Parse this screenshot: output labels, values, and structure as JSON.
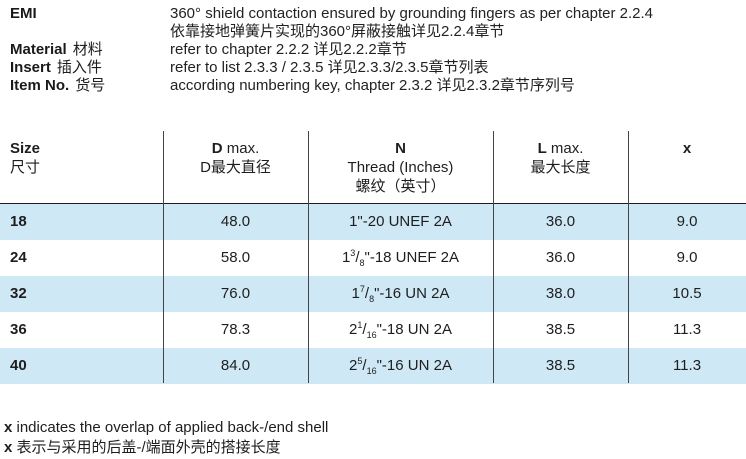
{
  "info": [
    {
      "label": "EMI",
      "label_cn": "",
      "value": "360° shield contaction ensured by grounding fingers as per chapter 2.2.4"
    },
    {
      "label": "",
      "label_cn": "",
      "value": "依靠接地弹簧片实现的360°屏蔽接触详见2.2.4章节"
    },
    {
      "label": "Material",
      "label_cn": "材料",
      "value": "refer to chapter 2.2.2  详见2.2.2章节"
    },
    {
      "label": "Insert",
      "label_cn": "插入件",
      "value": "refer to list 2.3.3 / 2.3.5  详见2.3.3/2.3.5章节列表"
    },
    {
      "label": "Item No.",
      "label_cn": "货号",
      "value": "according numbering key, chapter 2.3.2  详见2.3.2章节序列号"
    }
  ],
  "table": {
    "headers": {
      "size": {
        "bold": "Size",
        "cn": "尺寸"
      },
      "d": {
        "bold": "D",
        "rest": " max.",
        "cn": "D最大直径"
      },
      "n": {
        "bold": "N",
        "line2": "Thread (Inches)",
        "cn": "螺纹（英寸）"
      },
      "l": {
        "bold": "L",
        "rest": " max.",
        "cn": "最大长度"
      },
      "x": {
        "bold": "x"
      }
    },
    "rows": [
      {
        "size": "18",
        "d": "48.0",
        "n_whole": "1",
        "n_num": "",
        "n_den": "",
        "n_rest": "\"-20 UNEF 2A",
        "l": "36.0",
        "x": "9.0",
        "shaded": true
      },
      {
        "size": "24",
        "d": "58.0",
        "n_whole": "1",
        "n_num": "3",
        "n_den": "8",
        "n_rest": "\"-18 UNEF 2A",
        "l": "36.0",
        "x": "9.0",
        "shaded": false
      },
      {
        "size": "32",
        "d": "76.0",
        "n_whole": "1",
        "n_num": "7",
        "n_den": "8",
        "n_rest": "\"-16 UN 2A",
        "l": "38.0",
        "x": "10.5",
        "shaded": true
      },
      {
        "size": "36",
        "d": "78.3",
        "n_whole": "2",
        "n_num": "1",
        "n_den": "16",
        "n_rest": "\"-18 UN 2A",
        "l": "38.5",
        "x": "11.3",
        "shaded": false
      },
      {
        "size": "40",
        "d": "84.0",
        "n_whole": "2",
        "n_num": "5",
        "n_den": "16",
        "n_rest": "\"-16 UN 2A",
        "l": "38.5",
        "x": "11.3",
        "shaded": true
      }
    ]
  },
  "footnote": {
    "line1_bold": "x",
    "line1_rest": " indicates the overlap of applied back-/end shell",
    "line2_bold": "x",
    "line2_rest": " 表示与采用的后盖-/端面外壳的搭接长度"
  },
  "colors": {
    "row_shade": "#cfe8f5",
    "text": "#1e1e1e"
  }
}
